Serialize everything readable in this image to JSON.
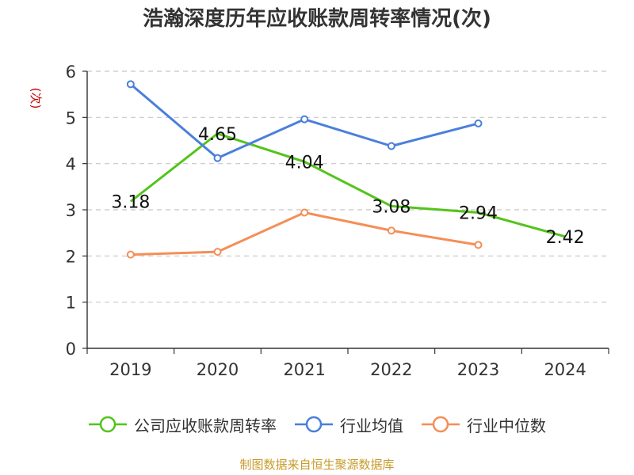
{
  "chart_data": {
    "type": "line",
    "title": "浩瀚深度历年应收账款周转率情况(次)",
    "ylabel": "(次)",
    "xlabel": "",
    "categories": [
      "2019",
      "2020",
      "2021",
      "2022",
      "2023",
      "2024"
    ],
    "ylim": [
      0,
      6
    ],
    "yticks": [
      0,
      1,
      2,
      3,
      4,
      5,
      6
    ],
    "grid": true,
    "legend_position": "bottom",
    "series": [
      {
        "name": "公司应收账款周转率",
        "values": [
          3.18,
          4.65,
          4.04,
          3.08,
          2.94,
          2.42
        ],
        "color": "#52c41a",
        "labeled": true
      },
      {
        "name": "行业均值",
        "values": [
          5.72,
          4.12,
          4.96,
          4.38,
          4.87,
          null
        ],
        "color": "#4a7fdc",
        "labeled": false
      },
      {
        "name": "行业中位数",
        "values": [
          2.03,
          2.09,
          2.94,
          2.55,
          2.24,
          null
        ],
        "color": "#f58e56",
        "labeled": false
      }
    ],
    "data_labels": [
      "3.18",
      "4.65",
      "4.04",
      "3.08",
      "2.94",
      "2.42"
    ]
  },
  "footer": "制图数据来自恒生聚源数据库"
}
